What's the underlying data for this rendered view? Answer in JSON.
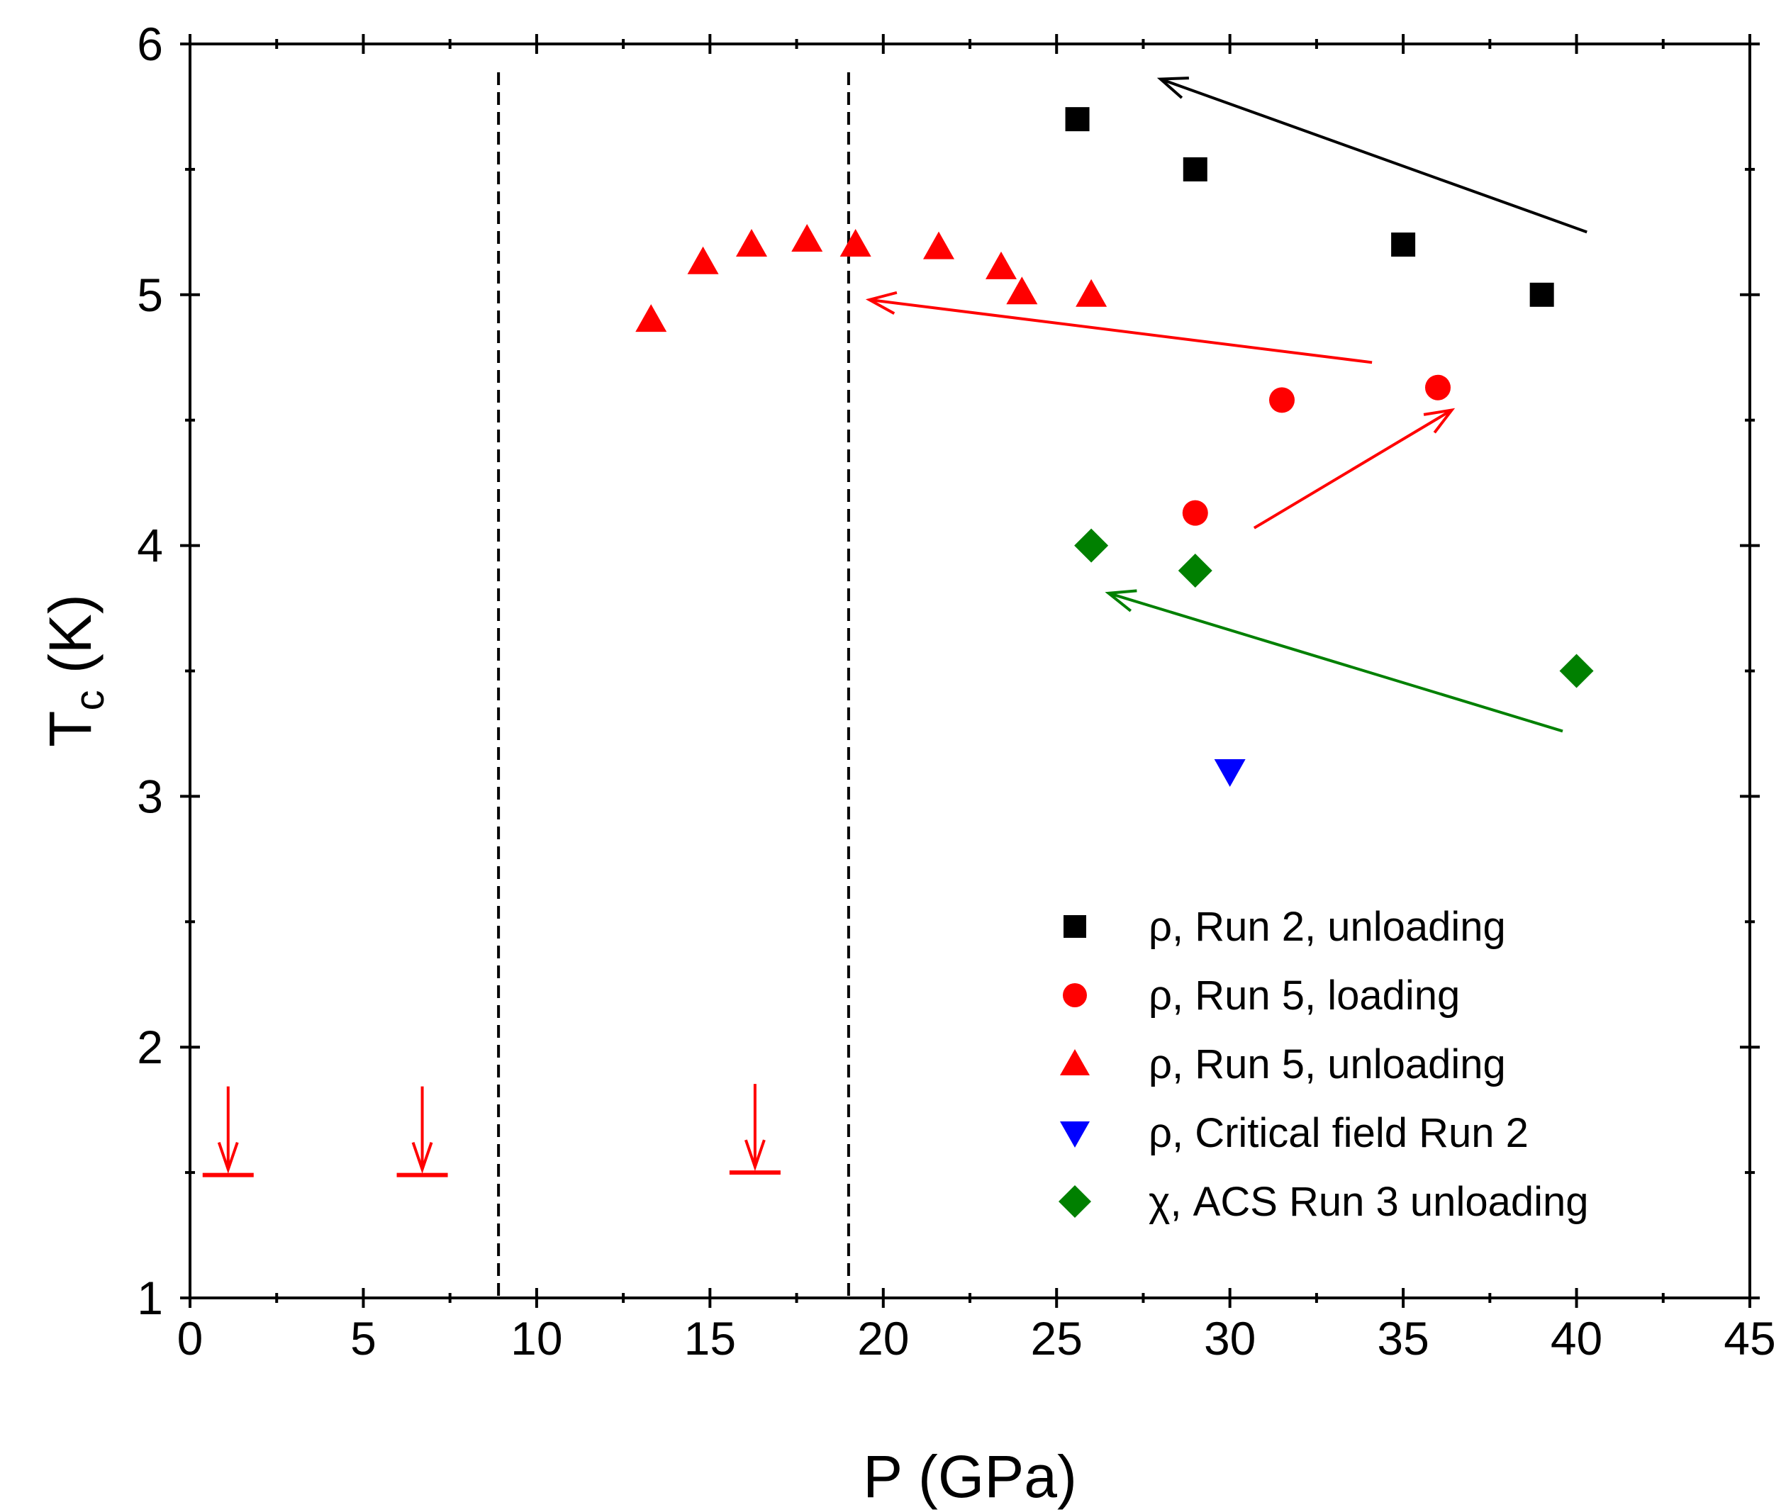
{
  "chart_data": {
    "type": "scatter",
    "xlabel": "P (GPa)",
    "ylabel": {
      "main": "T",
      "sub": "c",
      "unit": " (K)"
    },
    "xlim": [
      0,
      45
    ],
    "ylim": [
      1,
      6
    ],
    "xticks": [
      0,
      5,
      10,
      15,
      20,
      25,
      30,
      35,
      40,
      45
    ],
    "yticks": [
      1,
      2,
      3,
      4,
      5,
      6
    ],
    "xticks_minor": [
      2.5,
      7.5,
      12.5,
      17.5,
      22.5,
      27.5,
      32.5,
      37.5,
      42.5
    ],
    "yticks_minor": [
      1.5,
      2.5,
      3.5,
      4.5,
      5.5
    ],
    "legend_position": "bottom-right",
    "series": [
      {
        "name": "ρ, Run 2, unloading",
        "marker": "square",
        "color": "#000000",
        "points": [
          [
            25.6,
            5.7
          ],
          [
            29,
            5.5
          ],
          [
            35,
            5.2
          ],
          [
            39,
            5.0
          ]
        ]
      },
      {
        "name": "ρ, Run 5, loading",
        "marker": "circle",
        "color": "#ff0000",
        "points": [
          [
            29,
            4.13
          ],
          [
            31.5,
            4.58
          ],
          [
            36,
            4.63
          ]
        ]
      },
      {
        "name": "ρ, Run 5, unloading",
        "marker": "triangle-up",
        "color": "#ff0000",
        "points": [
          [
            13.3,
            4.9
          ],
          [
            14.8,
            5.13
          ],
          [
            16.2,
            5.2
          ],
          [
            17.8,
            5.22
          ],
          [
            19.2,
            5.2
          ],
          [
            21.6,
            5.19
          ],
          [
            23.4,
            5.11
          ],
          [
            24.0,
            5.01
          ],
          [
            26.0,
            5.0
          ]
        ]
      },
      {
        "name": "ρ, Critical field Run 2",
        "marker": "triangle-down",
        "color": "#0000ff",
        "points": [
          [
            30,
            3.1
          ]
        ]
      },
      {
        "name": "χ, ACS Run 3 unloading",
        "marker": "diamond",
        "color": "#008000",
        "points": [
          [
            26,
            4.0
          ],
          [
            29,
            3.9
          ],
          [
            40,
            3.5
          ]
        ]
      }
    ],
    "annotations": {
      "arrows": [
        {
          "color": "#000000",
          "from": [
            40.3,
            5.25
          ],
          "to": [
            28.0,
            5.86
          ]
        },
        {
          "color": "#ff0000",
          "from": [
            34.1,
            4.73
          ],
          "to": [
            19.6,
            4.98
          ]
        },
        {
          "color": "#ff0000",
          "from": [
            30.7,
            4.07
          ],
          "to": [
            36.4,
            4.54
          ]
        },
        {
          "color": "#008000",
          "from": [
            39.6,
            3.26
          ],
          "to": [
            26.5,
            3.81
          ]
        }
      ],
      "dashed_lines": [
        {
          "x": 8.9
        },
        {
          "x": 19.0
        }
      ],
      "upper_limit_markers": [
        {
          "x": 1.1,
          "y": 1.49,
          "color": "#ff0000"
        },
        {
          "x": 6.7,
          "y": 1.49,
          "color": "#ff0000"
        },
        {
          "x": 16.3,
          "y": 1.5,
          "color": "#ff0000"
        }
      ]
    }
  }
}
